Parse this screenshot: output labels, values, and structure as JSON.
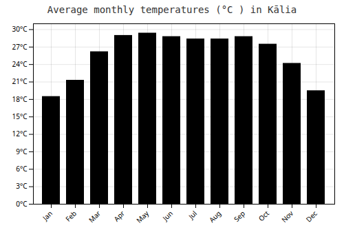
{
  "chart_data": {
    "type": "bar",
    "title": "Average monthly temperatures (°C ) in Kālia",
    "categories": [
      "Jan",
      "Feb",
      "Mar",
      "Apr",
      "May",
      "Jun",
      "Jul",
      "Aug",
      "Sep",
      "Oct",
      "Nov",
      "Dec"
    ],
    "values": [
      18.5,
      21.3,
      26.2,
      29.0,
      29.4,
      28.8,
      28.4,
      28.4,
      28.8,
      27.5,
      24.2,
      19.5
    ],
    "ylim": [
      0,
      31
    ],
    "yticks": [
      {
        "value": 0,
        "label": "0°C"
      },
      {
        "value": 3,
        "label": "3°C"
      },
      {
        "value": 6,
        "label": "6°C"
      },
      {
        "value": 9,
        "label": "9°C"
      },
      {
        "value": 12,
        "label": "12°C"
      },
      {
        "value": 15,
        "label": "15°C"
      },
      {
        "value": 18,
        "label": "18°C"
      },
      {
        "value": 21,
        "label": "21°C"
      },
      {
        "value": 24,
        "label": "24°C"
      },
      {
        "value": 27,
        "label": "27°C"
      },
      {
        "value": 30,
        "label": "30°C"
      }
    ],
    "grid": true
  }
}
